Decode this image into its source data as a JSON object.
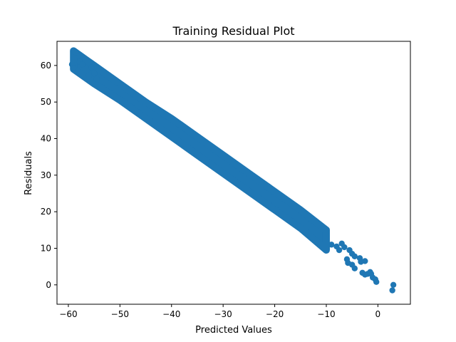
{
  "chart_data": {
    "type": "scatter",
    "title": "Training Residual Plot",
    "xlabel": "Predicted Values",
    "ylabel": "Residuals",
    "xlim": [
      -62.2,
      6.3
    ],
    "ylim": [
      -5.3,
      66.6
    ],
    "x_ticks": [
      -60,
      -50,
      -40,
      -30,
      -20,
      -10,
      0
    ],
    "x_tick_labels": [
      "−60",
      "−50",
      "−40",
      "−30",
      "−20",
      "−10",
      "0"
    ],
    "y_ticks": [
      0,
      10,
      20,
      30,
      40,
      50,
      60
    ],
    "y_tick_labels": [
      "0",
      "10",
      "20",
      "30",
      "40",
      "50",
      "60"
    ],
    "grid": false,
    "legend": "none",
    "marker_color": "#1f77b4",
    "series": [
      {
        "name": "",
        "band": {
          "description": "dense diagonal band of points, residual approx. 1 - predicted",
          "points": [
            {
              "x": -59.0,
              "y_min": 59.0,
              "y_max": 64.0
            },
            {
              "x": -55.0,
              "y_min": 55.0,
              "y_max": 60.0
            },
            {
              "x": -50.0,
              "y_min": 50.5,
              "y_max": 55.0
            },
            {
              "x": -45.0,
              "y_min": 45.5,
              "y_max": 50.0
            },
            {
              "x": -40.0,
              "y_min": 40.5,
              "y_max": 45.5
            },
            {
              "x": -35.0,
              "y_min": 35.5,
              "y_max": 40.5
            },
            {
              "x": -30.0,
              "y_min": 30.5,
              "y_max": 35.5
            },
            {
              "x": -25.0,
              "y_min": 25.5,
              "y_max": 30.5
            },
            {
              "x": -20.0,
              "y_min": 20.5,
              "y_max": 25.5
            },
            {
              "x": -15.0,
              "y_min": 15.5,
              "y_max": 20.5
            },
            {
              "x": -10.0,
              "y_min": 9.5,
              "y_max": 15.0
            }
          ]
        },
        "points": [
          {
            "x": -59.0,
            "y": 64.0
          },
          {
            "x": -58.5,
            "y": 63.5
          },
          {
            "x": -59.3,
            "y": 60.3
          },
          {
            "x": -59.0,
            "y": 59.3
          },
          {
            "x": -57.8,
            "y": 61.0
          },
          {
            "x": -57.3,
            "y": 60.3
          },
          {
            "x": -55.5,
            "y": 59.5
          },
          {
            "x": -55.0,
            "y": 57.8
          },
          {
            "x": -56.0,
            "y": 57.3
          },
          {
            "x": -54.5,
            "y": 56.3
          },
          {
            "x": -9.0,
            "y": 11.0
          },
          {
            "x": -8.0,
            "y": 10.5
          },
          {
            "x": -7.5,
            "y": 9.5
          },
          {
            "x": -7.0,
            "y": 11.3
          },
          {
            "x": -6.5,
            "y": 10.3
          },
          {
            "x": -5.5,
            "y": 9.5
          },
          {
            "x": -5.0,
            "y": 8.5
          },
          {
            "x": -4.5,
            "y": 7.8
          },
          {
            "x": -6.0,
            "y": 7.0
          },
          {
            "x": -5.8,
            "y": 6.0
          },
          {
            "x": -5.0,
            "y": 5.5
          },
          {
            "x": -4.5,
            "y": 4.5
          },
          {
            "x": -3.3,
            "y": 6.3
          },
          {
            "x": -3.5,
            "y": 7.3
          },
          {
            "x": -2.5,
            "y": 6.5
          },
          {
            "x": -3.0,
            "y": 3.3
          },
          {
            "x": -2.5,
            "y": 2.8
          },
          {
            "x": -2.0,
            "y": 3.0
          },
          {
            "x": -1.5,
            "y": 3.5
          },
          {
            "x": -1.3,
            "y": 3.0
          },
          {
            "x": -1.0,
            "y": 2.0
          },
          {
            "x": -0.5,
            "y": 1.5
          },
          {
            "x": -0.3,
            "y": 0.8
          },
          {
            "x": 3.0,
            "y": 0.0
          },
          {
            "x": 2.8,
            "y": -1.5
          }
        ]
      }
    ]
  }
}
